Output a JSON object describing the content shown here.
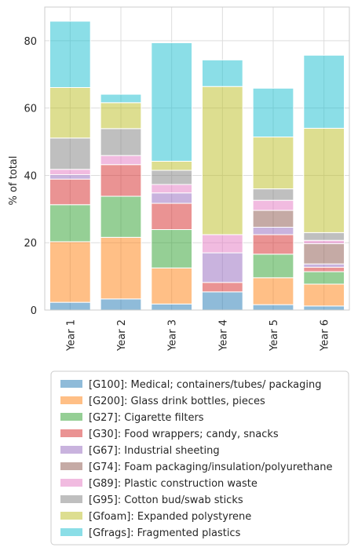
{
  "chart_data": {
    "type": "bar",
    "stacked": true,
    "title": "",
    "xlabel": "",
    "ylabel": "% of total",
    "ylim": [
      0,
      90
    ],
    "yticks": [
      0,
      20,
      40,
      60,
      80
    ],
    "grid": true,
    "legend_position": "bottom",
    "categories": [
      "Year 1",
      "Year 2",
      "Year 3",
      "Year 4",
      "Year 5",
      "Year 6"
    ],
    "series": [
      {
        "name": "[G100]: Medical; containers/tubes/ packaging",
        "color": "#1f77b4",
        "values": [
          2.3,
          3.3,
          1.8,
          5.4,
          1.6,
          1.2
        ]
      },
      {
        "name": "[G200]: Glass drink bottles, pieces",
        "color": "#ff7f0e",
        "values": [
          18.0,
          18.3,
          10.7,
          0.0,
          8.0,
          6.5
        ]
      },
      {
        "name": "[G27]: Cigarette filters",
        "color": "#2ca02c",
        "values": [
          11.0,
          12.2,
          11.4,
          0.0,
          7.0,
          3.7
        ]
      },
      {
        "name": "[G30]: Food wrappers; candy, snacks",
        "color": "#d62728",
        "values": [
          7.6,
          9.4,
          7.8,
          2.8,
          5.8,
          1.3
        ]
      },
      {
        "name": "[G67]: Industrial sheeting",
        "color": "#9467bd",
        "values": [
          1.3,
          0.0,
          3.1,
          8.8,
          2.2,
          1.0
        ]
      },
      {
        "name": "[G74]: Foam packaging/insulation/polyurethane",
        "color": "#8c564b",
        "values": [
          0.0,
          0.0,
          0.0,
          0.0,
          5.0,
          6.0
        ]
      },
      {
        "name": "[G89]: Plastic construction waste",
        "color": "#e377c2",
        "values": [
          1.6,
          2.7,
          2.5,
          5.4,
          3.0,
          1.0
        ]
      },
      {
        "name": "[G95]: Cotton bud/swab sticks",
        "color": "#7f7f7f",
        "values": [
          9.3,
          8.0,
          4.2,
          0.0,
          3.4,
          2.3
        ]
      },
      {
        "name": "[Gfoam]: Expanded polystyrene",
        "color": "#bcbd22",
        "values": [
          15.0,
          7.7,
          2.7,
          44.0,
          15.4,
          31.0
        ]
      },
      {
        "name": "[Gfrags]: Fragmented plastics",
        "color": "#17becf",
        "values": [
          19.7,
          2.5,
          35.2,
          7.9,
          14.5,
          21.7
        ]
      }
    ]
  }
}
